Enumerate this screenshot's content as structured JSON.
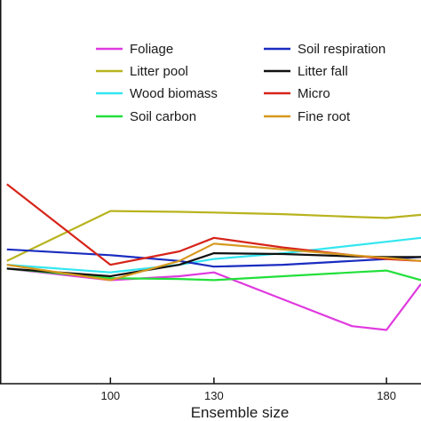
{
  "chart_data": {
    "type": "line",
    "xlabel": "Ensemble size",
    "ylabel": "",
    "x": [
      70,
      100,
      120,
      130,
      150,
      170,
      180,
      190
    ],
    "x_ticks": [
      100,
      130,
      180
    ],
    "xlim": [
      68,
      190
    ],
    "ylim": [
      0,
      1
    ],
    "grid": false,
    "legend_position": "top",
    "series": [
      {
        "name": "Foliage",
        "color": "#e03adf",
        "values": [
          0.3,
          0.27,
          0.28,
          0.29,
          0.22,
          0.15,
          0.14,
          0.26
        ]
      },
      {
        "name": "Litter pool",
        "color": "#b8b31e",
        "values": [
          0.32,
          0.45,
          0.448,
          0.446,
          0.442,
          0.435,
          0.432,
          0.44
        ]
      },
      {
        "name": "Wood biomass",
        "color": "#33e6f0",
        "values": [
          0.31,
          0.29,
          0.31,
          0.325,
          0.34,
          0.36,
          0.37,
          0.38
        ]
      },
      {
        "name": "Soil carbon",
        "color": "#22e03a",
        "values": [
          0.3,
          0.275,
          0.273,
          0.27,
          0.28,
          0.29,
          0.295,
          0.27
        ]
      },
      {
        "name": "Soil respiration",
        "color": "#1a2cc0",
        "values": [
          0.35,
          0.335,
          0.32,
          0.305,
          0.31,
          0.32,
          0.325,
          0.33
        ]
      },
      {
        "name": "Litter fall",
        "color": "#111111",
        "values": [
          0.3,
          0.28,
          0.31,
          0.34,
          0.338,
          0.332,
          0.33,
          0.33
        ]
      },
      {
        "name": "Micro",
        "color": "#d6241a",
        "values": [
          0.52,
          0.31,
          0.345,
          0.38,
          0.355,
          0.335,
          0.325,
          0.32
        ]
      },
      {
        "name": "Fine root",
        "color": "#d6981f",
        "values": [
          0.31,
          0.27,
          0.32,
          0.365,
          0.35,
          0.335,
          0.328,
          0.32
        ]
      }
    ]
  }
}
